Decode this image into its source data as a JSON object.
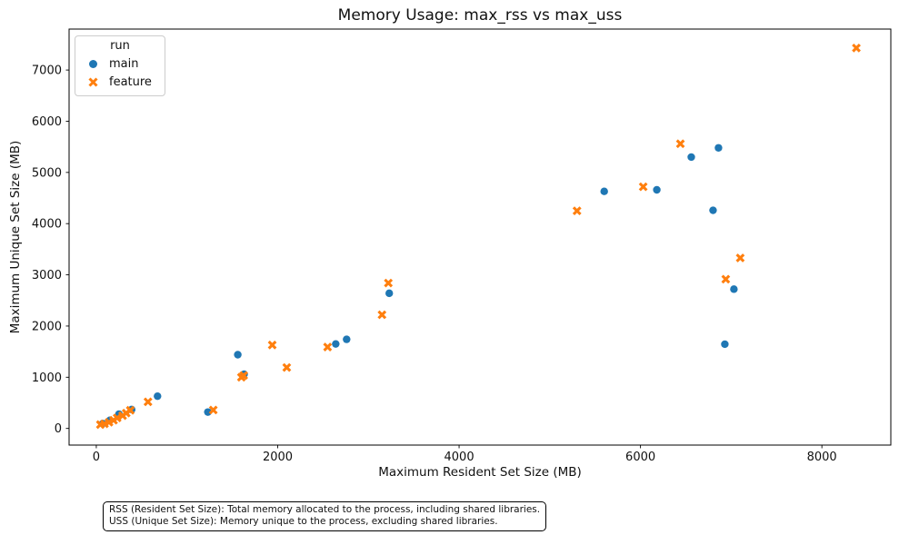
{
  "chart_data": {
    "type": "scatter",
    "title": "Memory Usage: max_rss vs max_uss",
    "xlabel": "Maximum Resident Set Size (MB)",
    "ylabel": "Maximum Unique Set Size (MB)",
    "xlim": [
      -300,
      8760
    ],
    "ylim": [
      -325,
      7800
    ],
    "xticks": [
      0,
      2000,
      4000,
      6000,
      8000
    ],
    "yticks": [
      0,
      1000,
      2000,
      3000,
      4000,
      5000,
      6000,
      7000
    ],
    "grid": false,
    "legend": {
      "title": "run",
      "position": "upper-left"
    },
    "series": [
      {
        "name": "main",
        "marker": "circle",
        "color": "#1f77b4",
        "points": [
          [
            70,
            95
          ],
          [
            150,
            160
          ],
          [
            250,
            280
          ],
          [
            390,
            370
          ],
          [
            675,
            630
          ],
          [
            1230,
            320
          ],
          [
            1560,
            1440
          ],
          [
            1630,
            1060
          ],
          [
            2640,
            1650
          ],
          [
            2760,
            1740
          ],
          [
            3230,
            2640
          ],
          [
            5600,
            4630
          ],
          [
            6180,
            4660
          ],
          [
            6560,
            5300
          ],
          [
            6800,
            4260
          ],
          [
            6860,
            5480
          ],
          [
            6930,
            1645
          ],
          [
            7030,
            2720
          ]
        ]
      },
      {
        "name": "feature",
        "marker": "x",
        "color": "#ff7f0e",
        "points": [
          [
            45,
            75
          ],
          [
            90,
            90
          ],
          [
            140,
            120
          ],
          [
            190,
            160
          ],
          [
            230,
            205
          ],
          [
            290,
            250
          ],
          [
            330,
            300
          ],
          [
            375,
            355
          ],
          [
            570,
            520
          ],
          [
            1290,
            360
          ],
          [
            1600,
            1000
          ],
          [
            1625,
            1035
          ],
          [
            1940,
            1630
          ],
          [
            2100,
            1190
          ],
          [
            2550,
            1590
          ],
          [
            3150,
            2220
          ],
          [
            3220,
            2840
          ],
          [
            5300,
            4250
          ],
          [
            6030,
            4720
          ],
          [
            6440,
            5560
          ],
          [
            6940,
            2915
          ],
          [
            7100,
            3330
          ],
          [
            8380,
            7430
          ]
        ]
      }
    ]
  },
  "footnote": {
    "line1": "RSS (Resident Set Size): Total memory allocated to the process, including shared libraries.",
    "line2": "USS (Unique Set Size): Memory unique to the process, excluding shared libraries."
  }
}
